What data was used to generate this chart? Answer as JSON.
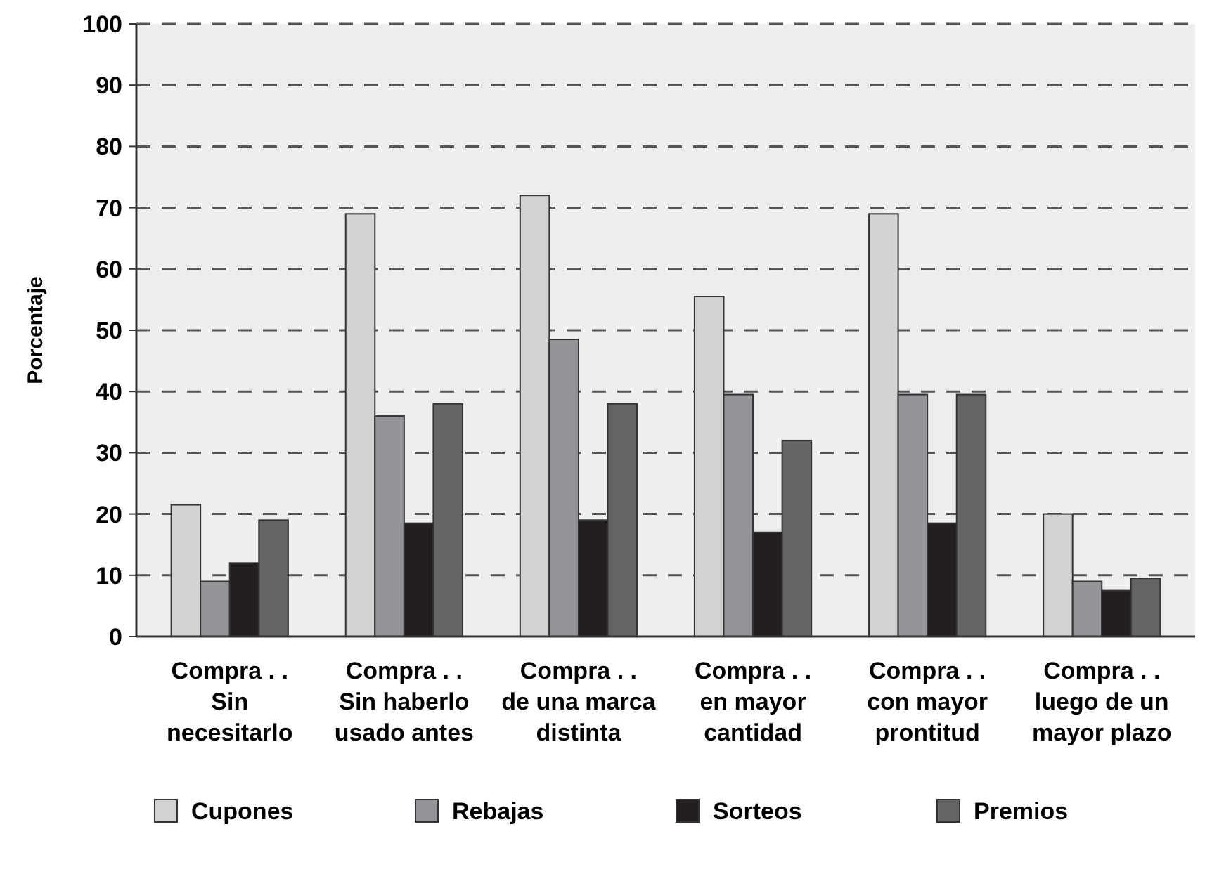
{
  "chart_data": {
    "type": "bar",
    "ylabel": "Porcentaje",
    "categories": [
      "Compra . .\nSin\nnecesitarlo",
      "Compra . .\nSin haberlo\nusado antes",
      "Compra . .\nde una marca\ndistinta",
      "Compra . .\nen mayor\ncantidad",
      "Compra . .\ncon mayor\nprontitud",
      "Compra . .\nluego de un\nmayor plazo"
    ],
    "series": [
      {
        "name": "Cupones",
        "color": "#d1d2d4",
        "values": [
          21.5,
          69,
          72,
          55.5,
          69,
          20
        ]
      },
      {
        "name": "Rebajas",
        "color": "#939598",
        "values": [
          9,
          36,
          48.5,
          39.5,
          39.5,
          9
        ]
      },
      {
        "name": "Sorteos",
        "color": "#231f20",
        "values": [
          12,
          18.5,
          19,
          17,
          18.5,
          7.5
        ]
      },
      {
        "name": "Premios",
        "color": "#636466",
        "values": [
          19,
          38,
          38,
          32,
          39.5,
          9.5
        ]
      }
    ],
    "ylim": [
      0,
      100
    ],
    "yticks": [
      0,
      10,
      20,
      30,
      40,
      50,
      60,
      70,
      80,
      90,
      100
    ],
    "grid": "y",
    "legend": "bottom"
  }
}
